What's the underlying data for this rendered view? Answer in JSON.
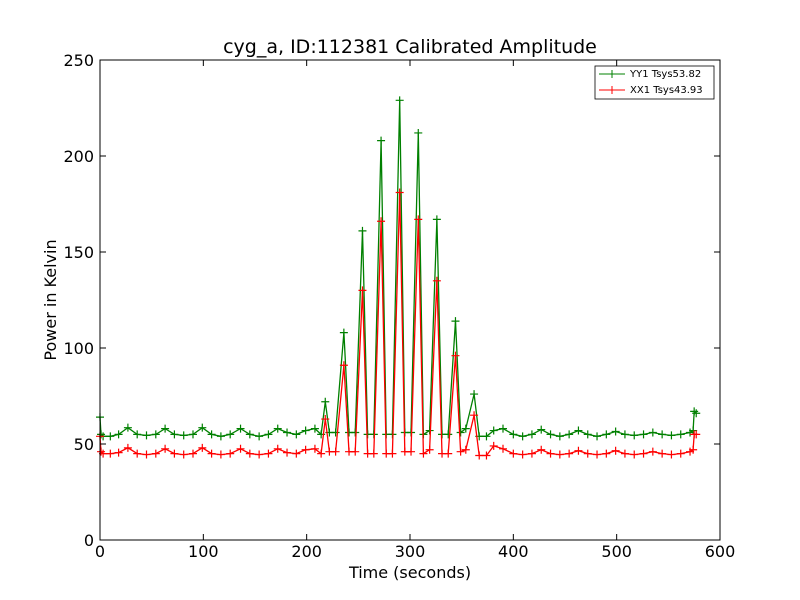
{
  "chart_data": {
    "type": "line",
    "title": "cyg_a, ID:112381 Calibrated Amplitude",
    "xlabel": "Time (seconds)",
    "ylabel": "Power in Kelvin",
    "xlim": [
      0,
      600
    ],
    "ylim": [
      0,
      250
    ],
    "xticks": [
      0,
      100,
      200,
      300,
      400,
      500,
      600
    ],
    "yticks": [
      0,
      50,
      100,
      150,
      200,
      250
    ],
    "grid": false,
    "legend_position": "top-right",
    "marker": "plus",
    "series": [
      {
        "name": "YY1 Tsys53.82",
        "color": "#008000",
        "points": [
          [
            0,
            64
          ],
          [
            1,
            55
          ],
          [
            3,
            54
          ],
          [
            10,
            54
          ],
          [
            18,
            55
          ],
          [
            27,
            58.5
          ],
          [
            36,
            55
          ],
          [
            45,
            54.5
          ],
          [
            54,
            55
          ],
          [
            63,
            58
          ],
          [
            72,
            55
          ],
          [
            81,
            54.5
          ],
          [
            90,
            55
          ],
          [
            99,
            58.5
          ],
          [
            108,
            55
          ],
          [
            117,
            54
          ],
          [
            126,
            55
          ],
          [
            136,
            58
          ],
          [
            145,
            55
          ],
          [
            154,
            54
          ],
          [
            163,
            55
          ],
          [
            172,
            58
          ],
          [
            181,
            56
          ],
          [
            190,
            55
          ],
          [
            199,
            57
          ],
          [
            208,
            58
          ],
          [
            214,
            55
          ],
          [
            218,
            72
          ],
          [
            222,
            56
          ],
          [
            228,
            56
          ],
          [
            236,
            108
          ],
          [
            241,
            56
          ],
          [
            247,
            56
          ],
          [
            254,
            161
          ],
          [
            259,
            55
          ],
          [
            265,
            55
          ],
          [
            272,
            208
          ],
          [
            277,
            55
          ],
          [
            283,
            55
          ],
          [
            290,
            229
          ],
          [
            295,
            56
          ],
          [
            301,
            56
          ],
          [
            308,
            212
          ],
          [
            313,
            55
          ],
          [
            319,
            57
          ],
          [
            326,
            167
          ],
          [
            331,
            55
          ],
          [
            337,
            55
          ],
          [
            344,
            114
          ],
          [
            349,
            56
          ],
          [
            354,
            58
          ],
          [
            362,
            76
          ],
          [
            367,
            54
          ],
          [
            374,
            54
          ],
          [
            381,
            57
          ],
          [
            390,
            58
          ],
          [
            400,
            55
          ],
          [
            409,
            54
          ],
          [
            418,
            55
          ],
          [
            427,
            57.5
          ],
          [
            436,
            55
          ],
          [
            445,
            54
          ],
          [
            454,
            55
          ],
          [
            463,
            57
          ],
          [
            472,
            55
          ],
          [
            481,
            54
          ],
          [
            490,
            55
          ],
          [
            499,
            56.5
          ],
          [
            508,
            55
          ],
          [
            517,
            54.5
          ],
          [
            526,
            55
          ],
          [
            535,
            56
          ],
          [
            544,
            55
          ],
          [
            553,
            54.5
          ],
          [
            562,
            55
          ],
          [
            571,
            56
          ],
          [
            574,
            57
          ],
          [
            575,
            67
          ],
          [
            577,
            66
          ]
        ]
      },
      {
        "name": "XX1 Tsys43.93",
        "color": "#ff0000",
        "points": [
          [
            0,
            54
          ],
          [
            1,
            46
          ],
          [
            3,
            45
          ],
          [
            10,
            45
          ],
          [
            18,
            45.5
          ],
          [
            27,
            48
          ],
          [
            36,
            45
          ],
          [
            45,
            44.5
          ],
          [
            54,
            45
          ],
          [
            63,
            47.5
          ],
          [
            72,
            45
          ],
          [
            81,
            44.5
          ],
          [
            90,
            45
          ],
          [
            99,
            48
          ],
          [
            108,
            45
          ],
          [
            117,
            44.5
          ],
          [
            126,
            45
          ],
          [
            136,
            47.5
          ],
          [
            145,
            45
          ],
          [
            154,
            44.5
          ],
          [
            163,
            45
          ],
          [
            172,
            47.5
          ],
          [
            181,
            45.5
          ],
          [
            190,
            45
          ],
          [
            199,
            47
          ],
          [
            208,
            47.5
          ],
          [
            214,
            45
          ],
          [
            218,
            63
          ],
          [
            222,
            46
          ],
          [
            228,
            46
          ],
          [
            236,
            91
          ],
          [
            241,
            46
          ],
          [
            247,
            46
          ],
          [
            254,
            130
          ],
          [
            259,
            45
          ],
          [
            265,
            45
          ],
          [
            272,
            166
          ],
          [
            277,
            45
          ],
          [
            283,
            45
          ],
          [
            290,
            181
          ],
          [
            295,
            46
          ],
          [
            301,
            46
          ],
          [
            308,
            167
          ],
          [
            313,
            45
          ],
          [
            319,
            47
          ],
          [
            326,
            135
          ],
          [
            331,
            45
          ],
          [
            337,
            45
          ],
          [
            344,
            96
          ],
          [
            349,
            46
          ],
          [
            354,
            47
          ],
          [
            362,
            65
          ],
          [
            367,
            44
          ],
          [
            374,
            44
          ],
          [
            381,
            49
          ],
          [
            390,
            47.5
          ],
          [
            400,
            45
          ],
          [
            409,
            44.5
          ],
          [
            418,
            45
          ],
          [
            427,
            47
          ],
          [
            436,
            45
          ],
          [
            445,
            44.5
          ],
          [
            454,
            45
          ],
          [
            463,
            46.5
          ],
          [
            472,
            45
          ],
          [
            481,
            44.5
          ],
          [
            490,
            45
          ],
          [
            499,
            46.5
          ],
          [
            508,
            45
          ],
          [
            517,
            44.5
          ],
          [
            526,
            45
          ],
          [
            535,
            46
          ],
          [
            544,
            45
          ],
          [
            553,
            44.5
          ],
          [
            562,
            45
          ],
          [
            571,
            46
          ],
          [
            574,
            47
          ],
          [
            575,
            55
          ],
          [
            577,
            55
          ]
        ]
      }
    ]
  }
}
